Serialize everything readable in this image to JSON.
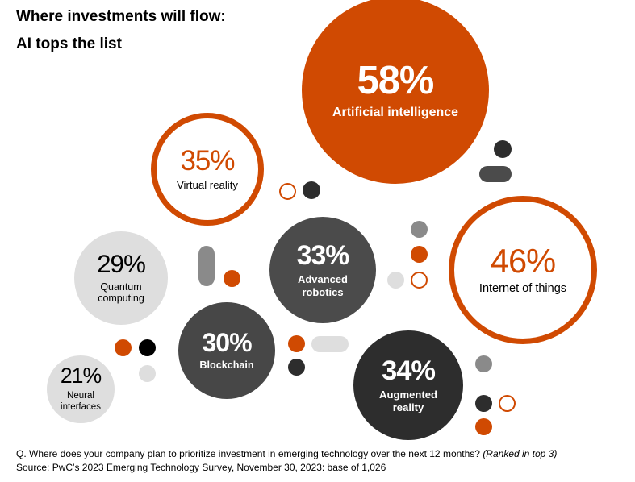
{
  "chart_data": {
    "type": "bubble",
    "title": "Where investments will flow:\nAI tops the list",
    "categories": [
      "Artificial intelligence",
      "Virtual reality",
      "Quantum\ncomputing",
      "Advanced\nrobotics",
      "Internet of things",
      "Blockchain",
      "Augmented\nreality",
      "Neural\ninterfaces"
    ],
    "values": [
      58,
      35,
      29,
      33,
      46,
      30,
      34,
      21
    ],
    "value_labels": [
      "58%",
      "35%",
      "29%",
      "33%",
      "46%",
      "30%",
      "34%",
      "21%"
    ],
    "colors": [
      "#d04a02",
      "#d04a02",
      "#dedede",
      "#4b4b4b",
      "#d04a02",
      "#474747",
      "#2d2d2d",
      "#dedede"
    ],
    "outlined": [
      false,
      true,
      false,
      false,
      true,
      false,
      false,
      false
    ],
    "question": "Q. Where does your company plan to prioritize investment in emerging technology over the next 12 months?",
    "question_note": "(Ranked in top 3)",
    "source": "Source: PwC’s 2023 Emerging Technology Survey, November 30, 2023: base of 1,026"
  }
}
